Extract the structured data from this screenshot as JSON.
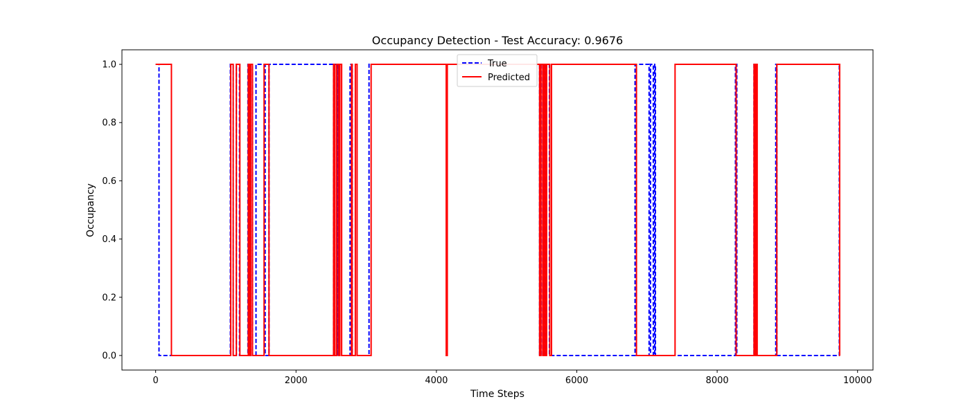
{
  "chart_data": {
    "type": "line",
    "title": "Occupancy Detection - Test Accuracy: 0.9676",
    "xlabel": "Time Steps",
    "ylabel": "Occupancy",
    "xlim": [
      -480,
      10220
    ],
    "ylim": [
      -0.05,
      1.05
    ],
    "x_ticks": [
      0,
      2000,
      4000,
      6000,
      8000,
      10000
    ],
    "y_ticks": [
      0.0,
      0.2,
      0.4,
      0.6,
      0.8,
      1.0
    ],
    "x_tick_labels": [
      "0",
      "2000",
      "4000",
      "6000",
      "8000",
      "10000"
    ],
    "y_tick_labels": [
      "0.0",
      "0.2",
      "0.4",
      "0.6",
      "0.8",
      "1.0"
    ],
    "grid": false,
    "legend_position": "top-center",
    "x_range": [
      0,
      9750
    ],
    "series": [
      {
        "name": "True",
        "color": "#0000ff",
        "style": "dashed",
        "initial": 1,
        "transitions": [
          48,
          1065,
          1105,
          1150,
          1195,
          1315,
          1338,
          1355,
          1380,
          1430,
          1560,
          1615,
          2535,
          2555,
          2585,
          2600,
          2615,
          2770,
          2800,
          3040,
          5470,
          5490,
          5515,
          5530,
          5550,
          5570,
          5610,
          6830,
          7030,
          7050,
          7090,
          7110,
          7120,
          8260,
          8280,
          8525,
          8550,
          8555,
          8565,
          8835,
          8850,
          9740
        ]
      },
      {
        "name": "Predicted",
        "color": "#ff0000",
        "style": "solid",
        "initial": 1,
        "transitions": [
          225,
          1070,
          1105,
          1150,
          1200,
          1320,
          1340,
          1355,
          1380,
          1545,
          1615,
          2535,
          2555,
          2580,
          2605,
          2625,
          2650,
          2790,
          2800,
          2845,
          2870,
          3070,
          4140,
          4155,
          5470,
          5490,
          5515,
          5530,
          5550,
          5570,
          5615,
          5640,
          6850,
          7400,
          8270,
          8525,
          8545,
          8555,
          8570,
          8850,
          9745
        ]
      }
    ]
  }
}
